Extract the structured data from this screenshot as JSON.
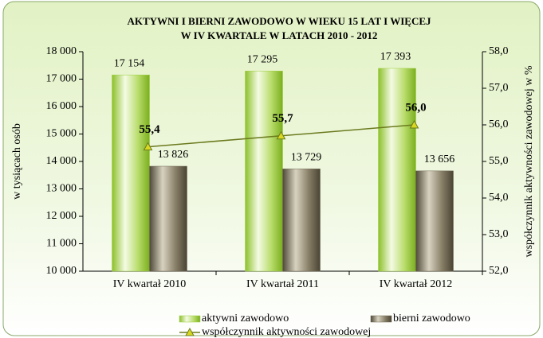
{
  "chart_data": {
    "type": "bar",
    "title": [
      "AKTYWNI  I  BIERNI  ZAWODOWO  W  WIEKU  15  LAT  I  WIĘCEJ",
      "W IV KWARTALE W LATACH  2010 - 2012"
    ],
    "y_label": "w tysiącach osób",
    "y2_label": "współczynnik aktywności zawodowej   w %",
    "categories": [
      "IV kwartał 2010",
      "IV kwartał 2011",
      "IV kwartał 2012"
    ],
    "series": [
      {
        "name": "aktywni zawodowo",
        "type": "bar",
        "color": "#9ccc3c",
        "values": [
          17154,
          17295,
          17393
        ],
        "value_labels": [
          "17 154",
          "17 295",
          "17 393"
        ]
      },
      {
        "name": "bierni zawodowo",
        "type": "bar",
        "color": "#6e6650",
        "values": [
          13826,
          13729,
          13656
        ],
        "value_labels": [
          "13 826",
          "13 729",
          "13 656"
        ]
      },
      {
        "name": "współczynnik aktywności zawodowej",
        "type": "line",
        "axis": "y2",
        "color": "#6b7a1e",
        "values": [
          55.4,
          55.7,
          56.0
        ],
        "value_labels": [
          "55,4",
          "55,7",
          "56,0"
        ]
      }
    ],
    "ylim": [
      10000,
      18000
    ],
    "yticks": [
      {
        "value": 10000,
        "label": "10 000"
      },
      {
        "value": 11000,
        "label": "11 000"
      },
      {
        "value": 12000,
        "label": "12 000"
      },
      {
        "value": 13000,
        "label": "13 000"
      },
      {
        "value": 14000,
        "label": "14 000"
      },
      {
        "value": 15000,
        "label": "15 000"
      },
      {
        "value": 16000,
        "label": "16 000"
      },
      {
        "value": 17000,
        "label": "17 000"
      },
      {
        "value": 18000,
        "label": "18 000"
      }
    ],
    "y2lim": [
      52,
      58
    ],
    "y2ticks": [
      {
        "value": 52,
        "label": "52,0"
      },
      {
        "value": 53,
        "label": "53,0"
      },
      {
        "value": 54,
        "label": "54,0"
      },
      {
        "value": 55,
        "label": "55,0"
      },
      {
        "value": 56,
        "label": "56,0"
      },
      {
        "value": 57,
        "label": "57,0"
      },
      {
        "value": 58,
        "label": "58,0"
      }
    ],
    "grid": false,
    "legend": "bottom"
  }
}
